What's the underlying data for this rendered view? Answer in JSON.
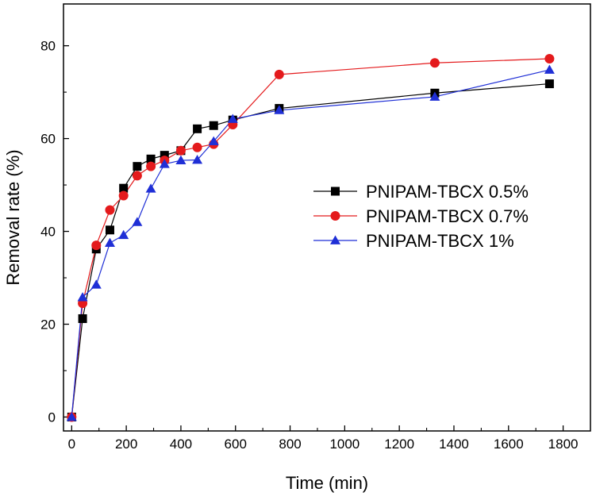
{
  "chart_data": {
    "type": "line",
    "title": "",
    "xlabel": "Time (min)",
    "ylabel": "Removal rate (%)",
    "xlim": [
      -30,
      1900
    ],
    "ylim": [
      -3,
      89
    ],
    "xticks": [
      0,
      200,
      400,
      600,
      800,
      1000,
      1200,
      1400,
      1600,
      1800
    ],
    "yticks": [
      0,
      20,
      40,
      60,
      80
    ],
    "legend_position": "center-right",
    "series": [
      {
        "name": "PNIPAM-TBCX 0.5%",
        "color": "#000000",
        "marker": "square",
        "x": [
          0,
          40,
          90,
          140,
          190,
          240,
          290,
          340,
          400,
          460,
          520,
          590,
          760,
          1330,
          1750
        ],
        "y": [
          0,
          21.2,
          36.2,
          40.3,
          49.3,
          54.0,
          55.6,
          56.4,
          57.4,
          62.1,
          62.8,
          64.0,
          66.5,
          69.8,
          71.8
        ]
      },
      {
        "name": "PNIPAM-TBCX 0.7%",
        "color": "#e41a1c",
        "marker": "circle",
        "x": [
          0,
          40,
          90,
          140,
          190,
          240,
          290,
          340,
          400,
          460,
          520,
          590,
          760,
          1330,
          1750
        ],
        "y": [
          0,
          24.5,
          37.0,
          44.6,
          47.7,
          52.0,
          54.0,
          55.3,
          57.4,
          58.1,
          58.8,
          63.0,
          73.8,
          76.3,
          77.2
        ]
      },
      {
        "name": "PNIPAM-TBCX 1%",
        "color": "#1f2fd6",
        "marker": "triangle",
        "x": [
          0,
          40,
          90,
          140,
          190,
          240,
          290,
          340,
          400,
          460,
          520,
          590,
          760,
          1330,
          1750
        ],
        "y": [
          0,
          25.8,
          28.5,
          37.5,
          39.2,
          42.0,
          49.2,
          54.5,
          55.3,
          55.4,
          59.4,
          64.2,
          66.1,
          69.0,
          74.8
        ]
      }
    ]
  }
}
